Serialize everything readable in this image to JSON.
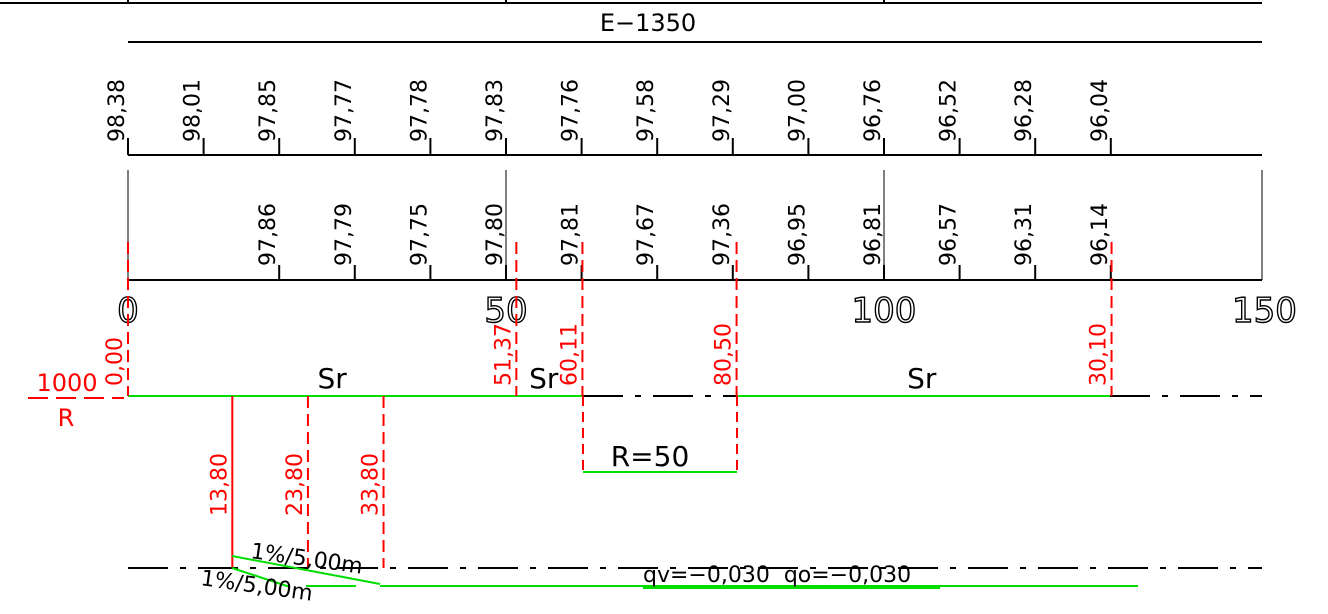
{
  "profile": {
    "code": "E−1350",
    "terrain_elevations": [
      {
        "station": 0,
        "value": "98,38"
      },
      {
        "station": 10,
        "value": "98,01"
      },
      {
        "station": 20,
        "value": "97,85"
      },
      {
        "station": 30,
        "value": "97,77"
      },
      {
        "station": 40,
        "value": "97,78"
      },
      {
        "station": 50,
        "value": "97,83"
      },
      {
        "station": 60,
        "value": "97,76"
      },
      {
        "station": 70,
        "value": "97,58"
      },
      {
        "station": 80,
        "value": "97,29"
      },
      {
        "station": 90,
        "value": "97,00"
      },
      {
        "station": 100,
        "value": "96,76"
      },
      {
        "station": 110,
        "value": "96,52"
      },
      {
        "station": 120,
        "value": "96,28"
      },
      {
        "station": 130,
        "value": "96,04"
      }
    ],
    "design_elevations": [
      {
        "station": 20,
        "value": "97,86"
      },
      {
        "station": 30,
        "value": "97,79"
      },
      {
        "station": 40,
        "value": "97,75"
      },
      {
        "station": 50,
        "value": "97,80"
      },
      {
        "station": 60,
        "value": "97,81"
      },
      {
        "station": 70,
        "value": "97,67"
      },
      {
        "station": 80,
        "value": "97,36"
      },
      {
        "station": 90,
        "value": "96,95"
      },
      {
        "station": 100,
        "value": "96,81"
      },
      {
        "station": 110,
        "value": "96,57"
      },
      {
        "station": 120,
        "value": "96,31"
      },
      {
        "station": 130,
        "value": "96,14"
      }
    ],
    "station_labels": [
      {
        "station": 0,
        "text": "0"
      },
      {
        "station": 50,
        "text": "50"
      },
      {
        "station": 100,
        "text": "100"
      },
      {
        "station": 150,
        "text": "150"
      }
    ],
    "curvature": {
      "radius_label_top": "1000",
      "radius_label_bottom": "R",
      "markers": [
        {
          "station": 0,
          "value": "0,00"
        },
        {
          "station": 51.37,
          "value": "51,37"
        },
        {
          "station": 60.11,
          "value": "60,11"
        },
        {
          "station": 80.5,
          "value": "80,50"
        },
        {
          "station": 130.1,
          "value": "30,10"
        }
      ],
      "segment_labels": [
        {
          "station": 27,
          "text": "Sr"
        },
        {
          "station": 55,
          "text": "Sr"
        },
        {
          "station": 105,
          "text": "Sr"
        }
      ],
      "curve_label": "R=50"
    },
    "superelevation": {
      "markers": [
        {
          "station": 13.8,
          "value": "13,80"
        },
        {
          "station": 23.8,
          "value": "23,80"
        },
        {
          "station": 33.8,
          "value": "33,80"
        }
      ],
      "ramp_label_upper": "1%/5,00m",
      "ramp_label_lower": "1%/5,00m",
      "slopes_label": "qv=−0,030  qo=−0,030"
    },
    "colors": {
      "lines": "#000000",
      "dimensions": "#ff0000",
      "alignment": "#00dd00",
      "grid": "#808080"
    }
  }
}
